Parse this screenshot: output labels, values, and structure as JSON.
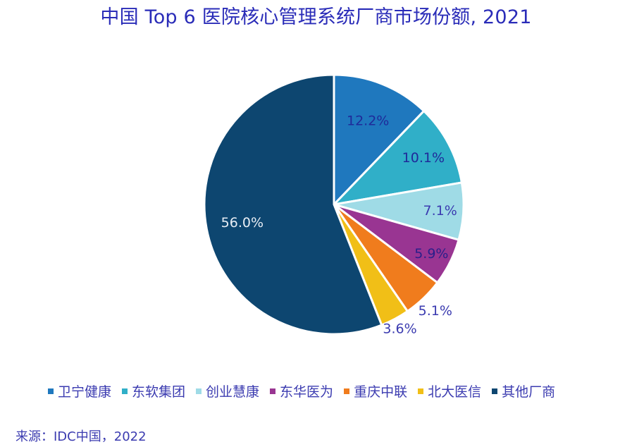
{
  "chart_data": {
    "type": "pie",
    "title": "中国 Top 6 医院核心管理系统厂商市场份额, 2021",
    "categories": [
      "卫宁健康",
      "东软集团",
      "创业慧康",
      "东华医为",
      "重庆中联",
      "北大医信",
      "其他厂商"
    ],
    "values": [
      12.2,
      10.1,
      7.1,
      5.9,
      5.1,
      3.6,
      56.0
    ],
    "labels": [
      "12.2%",
      "10.1%",
      "7.1%",
      "5.9%",
      "5.1%",
      "3.6%",
      "56.0%"
    ],
    "colors": [
      "#1f78be",
      "#30afc8",
      "#9fdbe6",
      "#993592",
      "#f07c1d",
      "#f1bf17",
      "#0d4670"
    ],
    "label_colors": [
      "#1f2a9a",
      "#1f2a9a",
      "#3b3bb0",
      "#2a1f8a",
      "#3b3bb0",
      "#3b3bb0",
      "#e8eef5"
    ],
    "start_angle_deg": 0,
    "direction": "clockwise",
    "legend_position": "bottom",
    "source": "来源：IDC中国，2022"
  },
  "header": {
    "title": "中国 Top 6 医院核心管理系统厂商市场份额, 2021"
  },
  "legend": {
    "items": [
      {
        "label": "卫宁健康",
        "color": "#1f78be"
      },
      {
        "label": "东软集团",
        "color": "#30afc8"
      },
      {
        "label": "创业慧康",
        "color": "#9fdbe6"
      },
      {
        "label": "东华医为",
        "color": "#993592"
      },
      {
        "label": "重庆中联",
        "color": "#f07c1d"
      },
      {
        "label": "北大医信",
        "color": "#f1bf17"
      },
      {
        "label": "其他厂商",
        "color": "#0d4670"
      }
    ]
  },
  "footer": {
    "source": "来源：IDC中国，2022"
  }
}
